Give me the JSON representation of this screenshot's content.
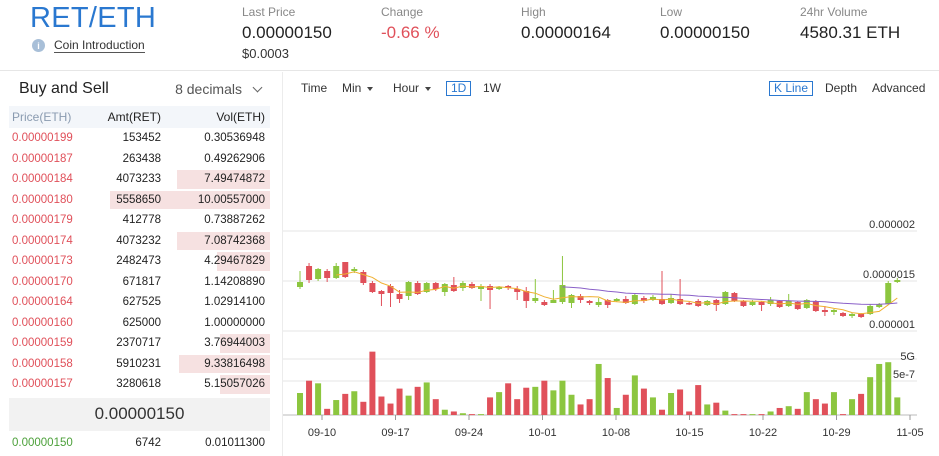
{
  "header": {
    "pair": "RET/ETH",
    "coin_intro": "Coin Introduction",
    "stats": [
      {
        "label": "Last Price",
        "value": "0.00000150",
        "sub": "$0.0003"
      },
      {
        "label": "Change",
        "value": "-0.66 %",
        "negative": true
      },
      {
        "label": "High",
        "value": "0.00000164"
      },
      {
        "label": "Low",
        "value": "0.00000150"
      },
      {
        "label": "24hr Volume",
        "value": "4580.31 ETH"
      }
    ]
  },
  "orderbook": {
    "title": "Buy and Sell",
    "decimals": "8 decimals",
    "columns": [
      "Price(ETH)",
      "Amt(RET)",
      "Vol(ETH)"
    ],
    "asks": [
      {
        "price": "0.00000199",
        "amount": "153452",
        "volume": "0.30536948",
        "depth": 0
      },
      {
        "price": "0.00000187",
        "amount": "263438",
        "volume": "0.49262906",
        "depth": 0
      },
      {
        "price": "0.00000184",
        "amount": "4073233",
        "volume": "7.49474872",
        "depth": 0.58
      },
      {
        "price": "0.00000180",
        "amount": "5558650",
        "volume": "10.00557000",
        "depth": 1.0
      },
      {
        "price": "0.00000179",
        "amount": "412778",
        "volume": "0.73887262",
        "depth": 0
      },
      {
        "price": "0.00000174",
        "amount": "4073232",
        "volume": "7.08742368",
        "depth": 0.58
      },
      {
        "price": "0.00000173",
        "amount": "2482473",
        "volume": "4.29467829",
        "depth": 0.33
      },
      {
        "price": "0.00000170",
        "amount": "671817",
        "volume": "1.14208890",
        "depth": 0
      },
      {
        "price": "0.00000164",
        "amount": "627525",
        "volume": "1.02914100",
        "depth": 0
      },
      {
        "price": "0.00000160",
        "amount": "625000",
        "volume": "1.00000000",
        "depth": 0
      },
      {
        "price": "0.00000159",
        "amount": "2370717",
        "volume": "3.76944003",
        "depth": 0.31
      },
      {
        "price": "0.00000158",
        "amount": "5910231",
        "volume": "9.33816498",
        "depth": 0.57
      },
      {
        "price": "0.00000157",
        "amount": "3280618",
        "volume": "5.15057026",
        "depth": 0.31
      }
    ],
    "last_price": "0.00000150",
    "bids": [
      {
        "price": "0.00000150",
        "amount": "6742",
        "volume": "0.01011300"
      }
    ]
  },
  "toolbar": {
    "time": "Time",
    "min": "Min",
    "hour": "Hour",
    "d1": "1D",
    "w1": "1W",
    "kline": "K Line",
    "depth": "Depth",
    "advanced": "Advanced"
  },
  "colors": {
    "up": "#8cc63f",
    "down": "#e0505a",
    "ma1": "#f0b030",
    "ma2": "#8a60c8"
  },
  "chart_data": {
    "type": "candlestick",
    "x_ticks": [
      "09-10",
      "09-17",
      "09-24",
      "10-01",
      "10-08",
      "10-15",
      "10-22",
      "10-29",
      "11-05"
    ],
    "y_ticks": [
      "0.000002",
      "0.0000015",
      "0.000001",
      "5e-7"
    ],
    "volume_ticks": [
      "5G"
    ],
    "ylim": [
      3e-07,
      2.2e-06
    ],
    "candles": [
      {
        "o": 1.44,
        "c": 1.49,
        "h": 1.6,
        "l": 1.42,
        "v": 0.25
      },
      {
        "o": 1.65,
        "c": 1.51,
        "h": 1.68,
        "l": 1.48,
        "v": 0.39
      },
      {
        "o": 1.52,
        "c": 1.62,
        "h": 1.63,
        "l": 1.5,
        "v": 0.36
      },
      {
        "o": 1.6,
        "c": 1.53,
        "h": 1.62,
        "l": 1.49,
        "v": 0.07
      },
      {
        "o": 1.53,
        "c": 1.65,
        "h": 1.68,
        "l": 1.52,
        "v": 0.17
      },
      {
        "o": 1.69,
        "c": 1.54,
        "h": 1.69,
        "l": 1.53,
        "v": 0.24
      },
      {
        "o": 1.6,
        "c": 1.62,
        "h": 1.64,
        "l": 1.58,
        "v": 0.27
      },
      {
        "o": 1.59,
        "c": 1.48,
        "h": 1.61,
        "l": 1.46,
        "v": 0.15
      },
      {
        "o": 1.48,
        "c": 1.39,
        "h": 1.5,
        "l": 1.38,
        "v": 0.72
      },
      {
        "o": 1.4,
        "c": 1.37,
        "h": 1.41,
        "l": 1.25,
        "v": 0.21
      },
      {
        "o": 1.45,
        "c": 1.38,
        "h": 1.47,
        "l": 1.24,
        "v": 0.13
      },
      {
        "o": 1.37,
        "c": 1.32,
        "h": 1.41,
        "l": 1.28,
        "v": 0.3
      },
      {
        "o": 1.35,
        "c": 1.49,
        "h": 1.5,
        "l": 1.31,
        "v": 0.22
      },
      {
        "o": 1.48,
        "c": 1.37,
        "h": 1.5,
        "l": 1.36,
        "v": 0.32
      },
      {
        "o": 1.39,
        "c": 1.48,
        "h": 1.49,
        "l": 1.38,
        "v": 0.37
      },
      {
        "o": 1.48,
        "c": 1.42,
        "h": 1.49,
        "l": 1.4,
        "v": 0.18
      },
      {
        "o": 1.39,
        "c": 1.47,
        "h": 1.48,
        "l": 1.35,
        "v": 0.06
      },
      {
        "o": 1.46,
        "c": 1.4,
        "h": 1.54,
        "l": 1.39,
        "v": 0.04
      },
      {
        "o": 1.43,
        "c": 1.48,
        "h": 1.5,
        "l": 1.4,
        "v": 0.02
      },
      {
        "o": 1.47,
        "c": 1.43,
        "h": 1.49,
        "l": 1.42,
        "v": 0.01
      },
      {
        "o": 1.42,
        "c": 1.45,
        "h": 1.47,
        "l": 1.3,
        "v": 0.01
      },
      {
        "o": 1.45,
        "c": 1.41,
        "h": 1.47,
        "l": 1.22,
        "v": 0.2
      },
      {
        "o": 1.42,
        "c": 1.44,
        "h": 1.45,
        "l": 1.41,
        "v": 0.26
      },
      {
        "o": 1.45,
        "c": 1.43,
        "h": 1.46,
        "l": 1.41,
        "v": 0.36
      },
      {
        "o": 1.42,
        "c": 1.39,
        "h": 1.45,
        "l": 1.31,
        "v": 0.18
      },
      {
        "o": 1.4,
        "c": 1.3,
        "h": 1.44,
        "l": 1.23,
        "v": 0.31
      },
      {
        "o": 1.3,
        "c": 1.33,
        "h": 1.52,
        "l": 1.28,
        "v": 0.32
      },
      {
        "o": 1.29,
        "c": 1.26,
        "h": 1.31,
        "l": 1.25,
        "v": 0.39
      },
      {
        "o": 1.28,
        "c": 1.31,
        "h": 1.41,
        "l": 1.28,
        "v": 0.28
      },
      {
        "o": 1.29,
        "c": 1.46,
        "h": 1.75,
        "l": 1.27,
        "v": 0.39
      },
      {
        "o": 1.28,
        "c": 1.36,
        "h": 1.37,
        "l": 1.23,
        "v": 0.23
      },
      {
        "o": 1.35,
        "c": 1.31,
        "h": 1.37,
        "l": 1.28,
        "v": 0.12
      },
      {
        "o": 1.3,
        "c": 1.28,
        "h": 1.31,
        "l": 1.26,
        "v": 0.18
      },
      {
        "o": 1.26,
        "c": 1.29,
        "h": 1.33,
        "l": 1.24,
        "v": 0.58
      },
      {
        "o": 1.31,
        "c": 1.26,
        "h": 1.32,
        "l": 1.23,
        "v": 0.42
      },
      {
        "o": 1.3,
        "c": 1.32,
        "h": 1.33,
        "l": 1.29,
        "v": 0.08
      },
      {
        "o": 1.32,
        "c": 1.28,
        "h": 1.35,
        "l": 1.27,
        "v": 0.23
      },
      {
        "o": 1.27,
        "c": 1.36,
        "h": 1.38,
        "l": 1.26,
        "v": 0.45
      },
      {
        "o": 1.33,
        "c": 1.3,
        "h": 1.35,
        "l": 1.28,
        "v": 0.3
      },
      {
        "o": 1.31,
        "c": 1.34,
        "h": 1.36,
        "l": 1.3,
        "v": 0.2
      },
      {
        "o": 1.32,
        "c": 1.27,
        "h": 1.6,
        "l": 1.26,
        "v": 0.06
      },
      {
        "o": 1.28,
        "c": 1.33,
        "h": 1.37,
        "l": 1.27,
        "v": 0.25
      },
      {
        "o": 1.32,
        "c": 1.27,
        "h": 1.52,
        "l": 1.26,
        "v": 0.29
      },
      {
        "o": 1.28,
        "c": 1.27,
        "h": 1.29,
        "l": 1.26,
        "v": 0.04
      },
      {
        "o": 1.3,
        "c": 1.25,
        "h": 1.32,
        "l": 1.24,
        "v": 0.34
      },
      {
        "o": 1.26,
        "c": 1.3,
        "h": 1.31,
        "l": 1.25,
        "v": 0.12
      },
      {
        "o": 1.31,
        "c": 1.26,
        "h": 1.32,
        "l": 1.2,
        "v": 0.14
      },
      {
        "o": 1.27,
        "c": 1.39,
        "h": 1.4,
        "l": 1.26,
        "v": 0.05
      },
      {
        "o": 1.38,
        "c": 1.3,
        "h": 1.39,
        "l": 1.29,
        "v": 0.01
      },
      {
        "o": 1.3,
        "c": 1.25,
        "h": 1.31,
        "l": 1.24,
        "v": 0.01
      },
      {
        "o": 1.26,
        "c": 1.29,
        "h": 1.31,
        "l": 1.25,
        "v": 0.01
      },
      {
        "o": 1.29,
        "c": 1.26,
        "h": 1.3,
        "l": 1.2,
        "v": 0.01
      },
      {
        "o": 1.27,
        "c": 1.31,
        "h": 1.34,
        "l": 1.25,
        "v": 0.04
      },
      {
        "o": 1.3,
        "c": 1.24,
        "h": 1.31,
        "l": 1.23,
        "v": 0.08
      },
      {
        "o": 1.25,
        "c": 1.3,
        "h": 1.37,
        "l": 1.24,
        "v": 0.1
      },
      {
        "o": 1.29,
        "c": 1.22,
        "h": 1.3,
        "l": 1.21,
        "v": 0.07
      },
      {
        "o": 1.23,
        "c": 1.31,
        "h": 1.32,
        "l": 1.22,
        "v": 0.26
      },
      {
        "o": 1.3,
        "c": 1.2,
        "h": 1.31,
        "l": 1.19,
        "v": 0.18
      },
      {
        "o": 1.21,
        "c": 1.19,
        "h": 1.25,
        "l": 1.15,
        "v": 0.13
      },
      {
        "o": 1.19,
        "c": 1.21,
        "h": 1.22,
        "l": 1.16,
        "v": 0.26
      },
      {
        "o": 1.18,
        "c": 1.15,
        "h": 1.19,
        "l": 1.14,
        "v": 0.01
      },
      {
        "o": 1.15,
        "c": 1.17,
        "h": 1.18,
        "l": 1.13,
        "v": 0.18
      },
      {
        "o": 1.17,
        "c": 1.14,
        "h": 1.18,
        "l": 1.13,
        "v": 0.24
      },
      {
        "o": 1.17,
        "c": 1.25,
        "h": 1.27,
        "l": 1.16,
        "v": 0.43
      },
      {
        "o": 1.24,
        "c": 1.27,
        "h": 1.28,
        "l": 1.23,
        "v": 0.58
      },
      {
        "o": 1.27,
        "c": 1.48,
        "h": 1.5,
        "l": 1.26,
        "v": 0.6
      },
      {
        "o": 1.49,
        "c": 1.51,
        "h": 1.53,
        "l": 1.48,
        "v": 0.2
      }
    ]
  }
}
